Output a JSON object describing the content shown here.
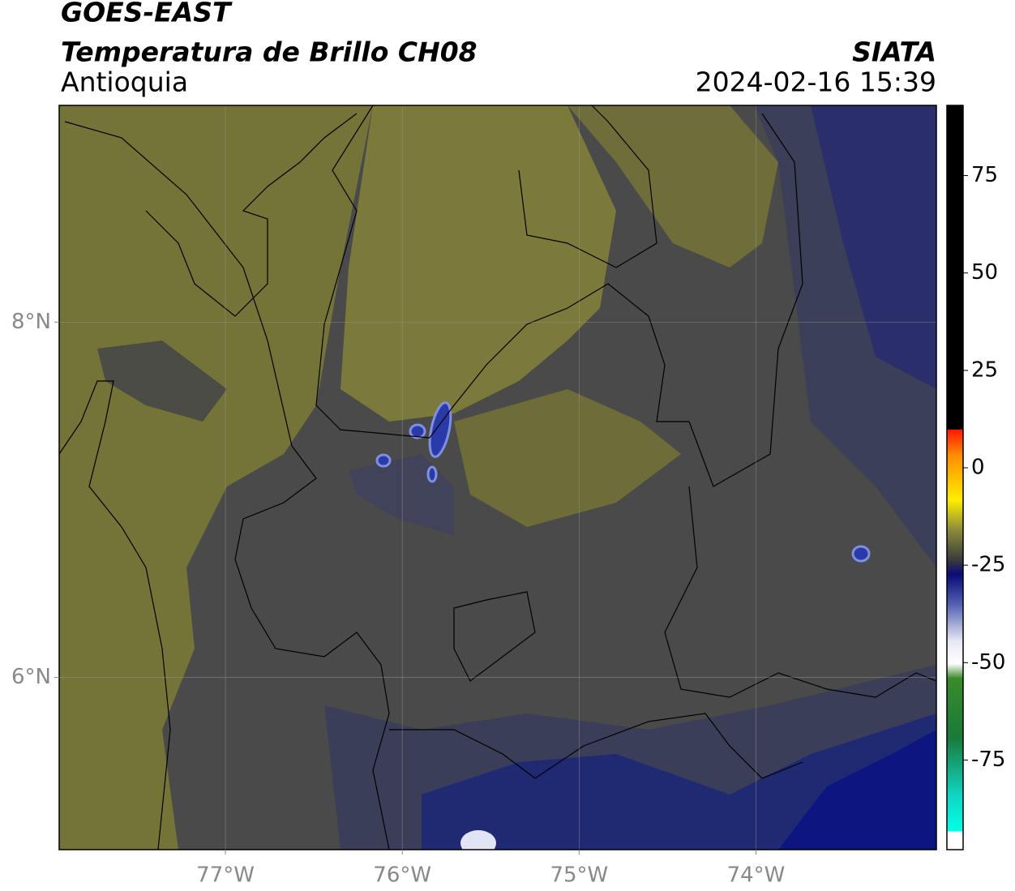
{
  "header": {
    "satellite": "GOES-EAST",
    "product": "Temperatura de Brillo CH08",
    "region": "Antioquia",
    "source": "SIATA",
    "datetime": "2024-02-16 15:39"
  },
  "map": {
    "xlim": [
      -77.94,
      -72.98
    ],
    "ylim": [
      5.03,
      9.22
    ],
    "xticks": [
      {
        "value": -77,
        "label": "77°W"
      },
      {
        "value": -76,
        "label": "76°W"
      },
      {
        "value": -75,
        "label": "75°W"
      },
      {
        "value": -74,
        "label": "74°W"
      }
    ],
    "yticks": [
      {
        "value": 6,
        "label": "6°N"
      },
      {
        "value": 8,
        "label": "8°N"
      }
    ],
    "grid": true
  },
  "colorbar": {
    "lim": [
      -98,
      93
    ],
    "ticks": [
      -75,
      -50,
      -25,
      0,
      25,
      50,
      75
    ]
  }
}
